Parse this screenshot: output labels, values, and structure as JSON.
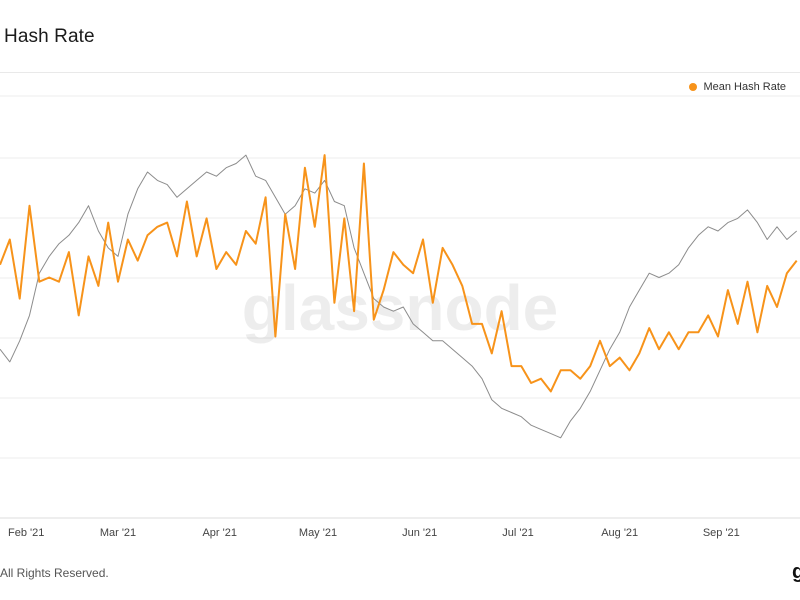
{
  "header": {
    "title": "n Hash Rate"
  },
  "footer": {
    "copyright": "All Rights Reserved.",
    "corner_mark": "g"
  },
  "watermark": "glassnode",
  "colors": {
    "primary": "#f7931a",
    "secondary": "#8c8c8c",
    "grid": "#ececec"
  },
  "chart_data": {
    "type": "line",
    "title": "n Hash Rate",
    "xlabel": "",
    "ylabel": "",
    "x_ticks": [
      "Feb '21",
      "Mar '21",
      "Apr '21",
      "May '21",
      "Jun '21",
      "Jul '21",
      "Aug '21",
      "Sep '21"
    ],
    "x_range": [
      "2021-01-24",
      "2021-09-25"
    ],
    "y_range": [
      0,
      100
    ],
    "grid": true,
    "legend": {
      "position": "top-right",
      "entries": [
        "Mean Hash Rate"
      ]
    },
    "series": [
      {
        "name": "Mean Hash Rate",
        "color": "#f7931a",
        "x": [
          "2021-01-24",
          "2021-01-27",
          "2021-01-30",
          "2021-02-02",
          "2021-02-05",
          "2021-02-08",
          "2021-02-11",
          "2021-02-14",
          "2021-02-17",
          "2021-02-20",
          "2021-02-23",
          "2021-02-26",
          "2021-03-01",
          "2021-03-04",
          "2021-03-07",
          "2021-03-10",
          "2021-03-13",
          "2021-03-16",
          "2021-03-19",
          "2021-03-22",
          "2021-03-25",
          "2021-03-28",
          "2021-03-31",
          "2021-04-03",
          "2021-04-06",
          "2021-04-09",
          "2021-04-12",
          "2021-04-15",
          "2021-04-18",
          "2021-04-21",
          "2021-04-24",
          "2021-04-27",
          "2021-04-30",
          "2021-05-03",
          "2021-05-06",
          "2021-05-09",
          "2021-05-12",
          "2021-05-15",
          "2021-05-18",
          "2021-05-21",
          "2021-05-24",
          "2021-05-27",
          "2021-05-30",
          "2021-06-02",
          "2021-06-05",
          "2021-06-08",
          "2021-06-11",
          "2021-06-14",
          "2021-06-17",
          "2021-06-20",
          "2021-06-23",
          "2021-06-26",
          "2021-06-29",
          "2021-07-02",
          "2021-07-05",
          "2021-07-08",
          "2021-07-11",
          "2021-07-14",
          "2021-07-17",
          "2021-07-20",
          "2021-07-23",
          "2021-07-26",
          "2021-07-29",
          "2021-08-01",
          "2021-08-04",
          "2021-08-07",
          "2021-08-10",
          "2021-08-13",
          "2021-08-16",
          "2021-08-19",
          "2021-08-22",
          "2021-08-25",
          "2021-08-28",
          "2021-08-31",
          "2021-09-03",
          "2021-09-06",
          "2021-09-09",
          "2021-09-12",
          "2021-09-15",
          "2021-09-18",
          "2021-09-21",
          "2021-09-24"
        ],
        "values": [
          60,
          66,
          52,
          74,
          56,
          57,
          56,
          63,
          48,
          62,
          55,
          70,
          56,
          66,
          61,
          67,
          69,
          70,
          62,
          75,
          62,
          71,
          59,
          63,
          60,
          68,
          65,
          76,
          43,
          72,
          59,
          83,
          69,
          86,
          51,
          71,
          49,
          84,
          47,
          54,
          63,
          60,
          58,
          66,
          51,
          64,
          60,
          55,
          46,
          46,
          39,
          49,
          36,
          36,
          32,
          33,
          30,
          35,
          35,
          33,
          36,
          42,
          36,
          38,
          35,
          39,
          45,
          40,
          44,
          40,
          44,
          44,
          48,
          43,
          54,
          46,
          56,
          44,
          55,
          50,
          58,
          61
        ]
      },
      {
        "name": "",
        "color": "#8c8c8c",
        "x": [
          "2021-01-24",
          "2021-01-27",
          "2021-01-30",
          "2021-02-02",
          "2021-02-05",
          "2021-02-08",
          "2021-02-11",
          "2021-02-14",
          "2021-02-17",
          "2021-02-20",
          "2021-02-23",
          "2021-02-26",
          "2021-03-01",
          "2021-03-04",
          "2021-03-07",
          "2021-03-10",
          "2021-03-13",
          "2021-03-16",
          "2021-03-19",
          "2021-03-22",
          "2021-03-25",
          "2021-03-28",
          "2021-03-31",
          "2021-04-03",
          "2021-04-06",
          "2021-04-09",
          "2021-04-12",
          "2021-04-15",
          "2021-04-18",
          "2021-04-21",
          "2021-04-24",
          "2021-04-27",
          "2021-04-30",
          "2021-05-03",
          "2021-05-06",
          "2021-05-09",
          "2021-05-12",
          "2021-05-15",
          "2021-05-18",
          "2021-05-21",
          "2021-05-24",
          "2021-05-27",
          "2021-05-30",
          "2021-06-02",
          "2021-06-05",
          "2021-06-08",
          "2021-06-11",
          "2021-06-14",
          "2021-06-17",
          "2021-06-20",
          "2021-06-23",
          "2021-06-26",
          "2021-06-29",
          "2021-07-02",
          "2021-07-05",
          "2021-07-08",
          "2021-07-11",
          "2021-07-14",
          "2021-07-17",
          "2021-07-20",
          "2021-07-23",
          "2021-07-26",
          "2021-07-29",
          "2021-08-01",
          "2021-08-04",
          "2021-08-07",
          "2021-08-10",
          "2021-08-13",
          "2021-08-16",
          "2021-08-19",
          "2021-08-22",
          "2021-08-25",
          "2021-08-28",
          "2021-08-31",
          "2021-09-03",
          "2021-09-06",
          "2021-09-09",
          "2021-09-12",
          "2021-09-15",
          "2021-09-18",
          "2021-09-21",
          "2021-09-24"
        ],
        "values": [
          40,
          37,
          42,
          48,
          58,
          62,
          65,
          67,
          70,
          74,
          68,
          64,
          62,
          72,
          78,
          82,
          80,
          79,
          76,
          78,
          80,
          82,
          81,
          83,
          84,
          86,
          81,
          80,
          76,
          72,
          74,
          78,
          77,
          80,
          75,
          74,
          64,
          58,
          52,
          50,
          49,
          50,
          46,
          44,
          42,
          42,
          40,
          38,
          36,
          33,
          28,
          26,
          25,
          24,
          22,
          21,
          20,
          19,
          23,
          26,
          30,
          35,
          40,
          44,
          50,
          54,
          58,
          57,
          58,
          60,
          64,
          67,
          69,
          68,
          70,
          71,
          73,
          70,
          66,
          69,
          66,
          68
        ]
      }
    ]
  }
}
